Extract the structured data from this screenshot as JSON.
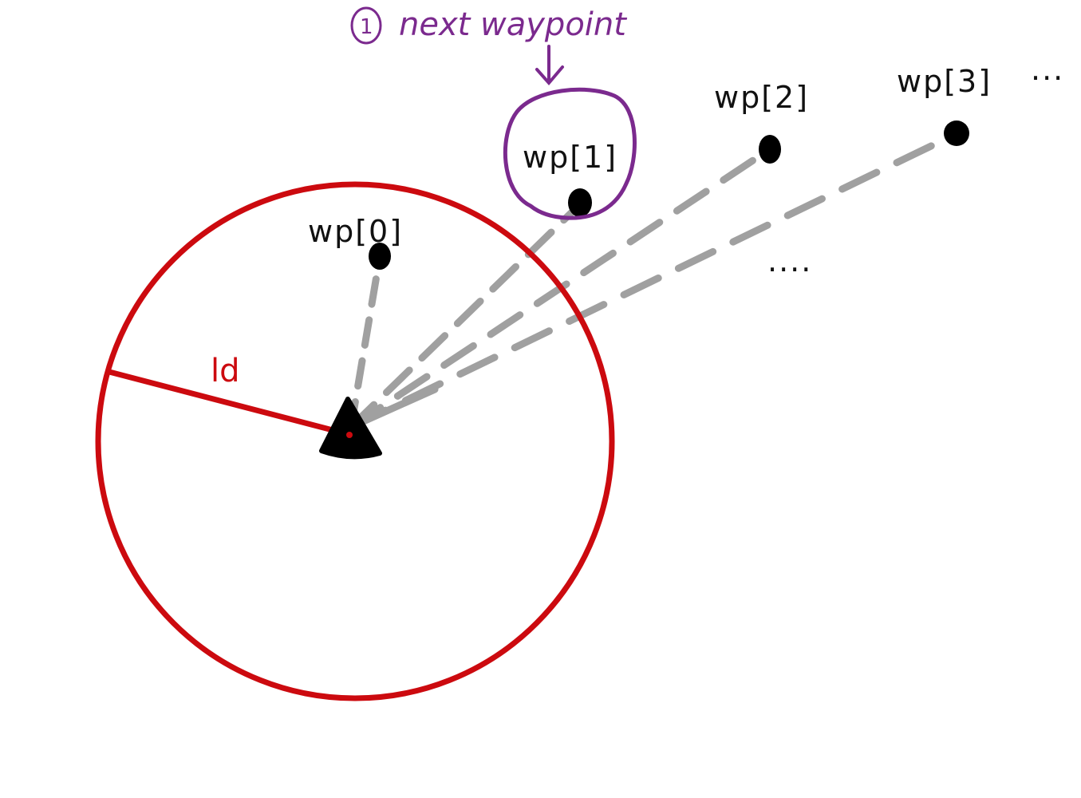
{
  "colors": {
    "lookahead_circle": "#cc0a0f",
    "highlight": "#7b2a8e",
    "dashed_line": "#a0a0a0",
    "point": "#000000",
    "text": "#111111"
  },
  "lookahead": {
    "radius_label": "ld"
  },
  "annotation": {
    "step_number": "1",
    "text": "next waypoint"
  },
  "waypoints": [
    {
      "label": "wp[0]",
      "highlighted": false
    },
    {
      "label": "wp[1]",
      "highlighted": true
    },
    {
      "label": "wp[2]",
      "highlighted": false
    },
    {
      "label": "wp[3]",
      "highlighted": false
    }
  ],
  "continuation": {
    "after_wp3": "...",
    "trailing": "...."
  },
  "vehicle": {
    "icon": "triangle-vehicle-icon"
  }
}
